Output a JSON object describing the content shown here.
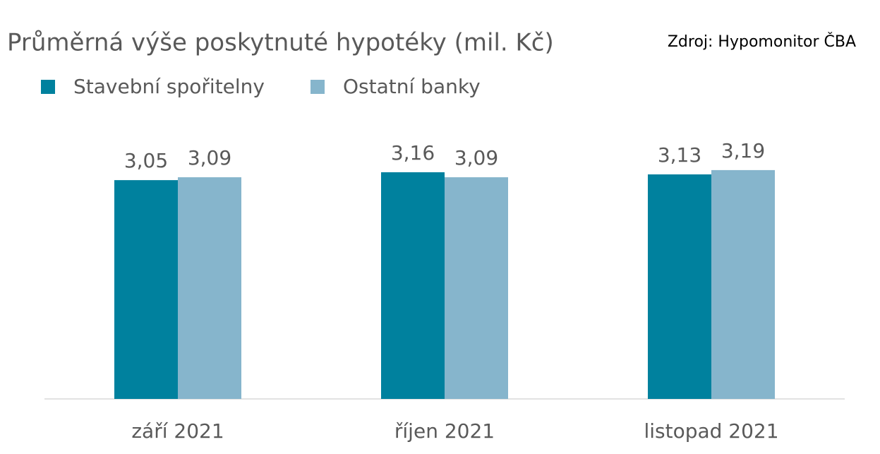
{
  "chart_data": {
    "type": "bar",
    "title": "Průměrná výše poskytnuté hypotéky (mil. Kč)",
    "source": "Zdroj: Hypomonitor ČBA",
    "categories": [
      "září 2021",
      "říjen 2021",
      "listopad 2021"
    ],
    "series": [
      {
        "name": "Stavební spořitelny",
        "color": "#00819e",
        "values": [
          3.05,
          3.16,
          3.13
        ],
        "value_labels": [
          "3,05",
          "3,16",
          "3,13"
        ]
      },
      {
        "name": "Ostatní banky",
        "color": "#86b5cc",
        "values": [
          3.09,
          3.09,
          3.19
        ],
        "value_labels": [
          "3,09",
          "3,09",
          "3,19"
        ]
      }
    ]
  }
}
